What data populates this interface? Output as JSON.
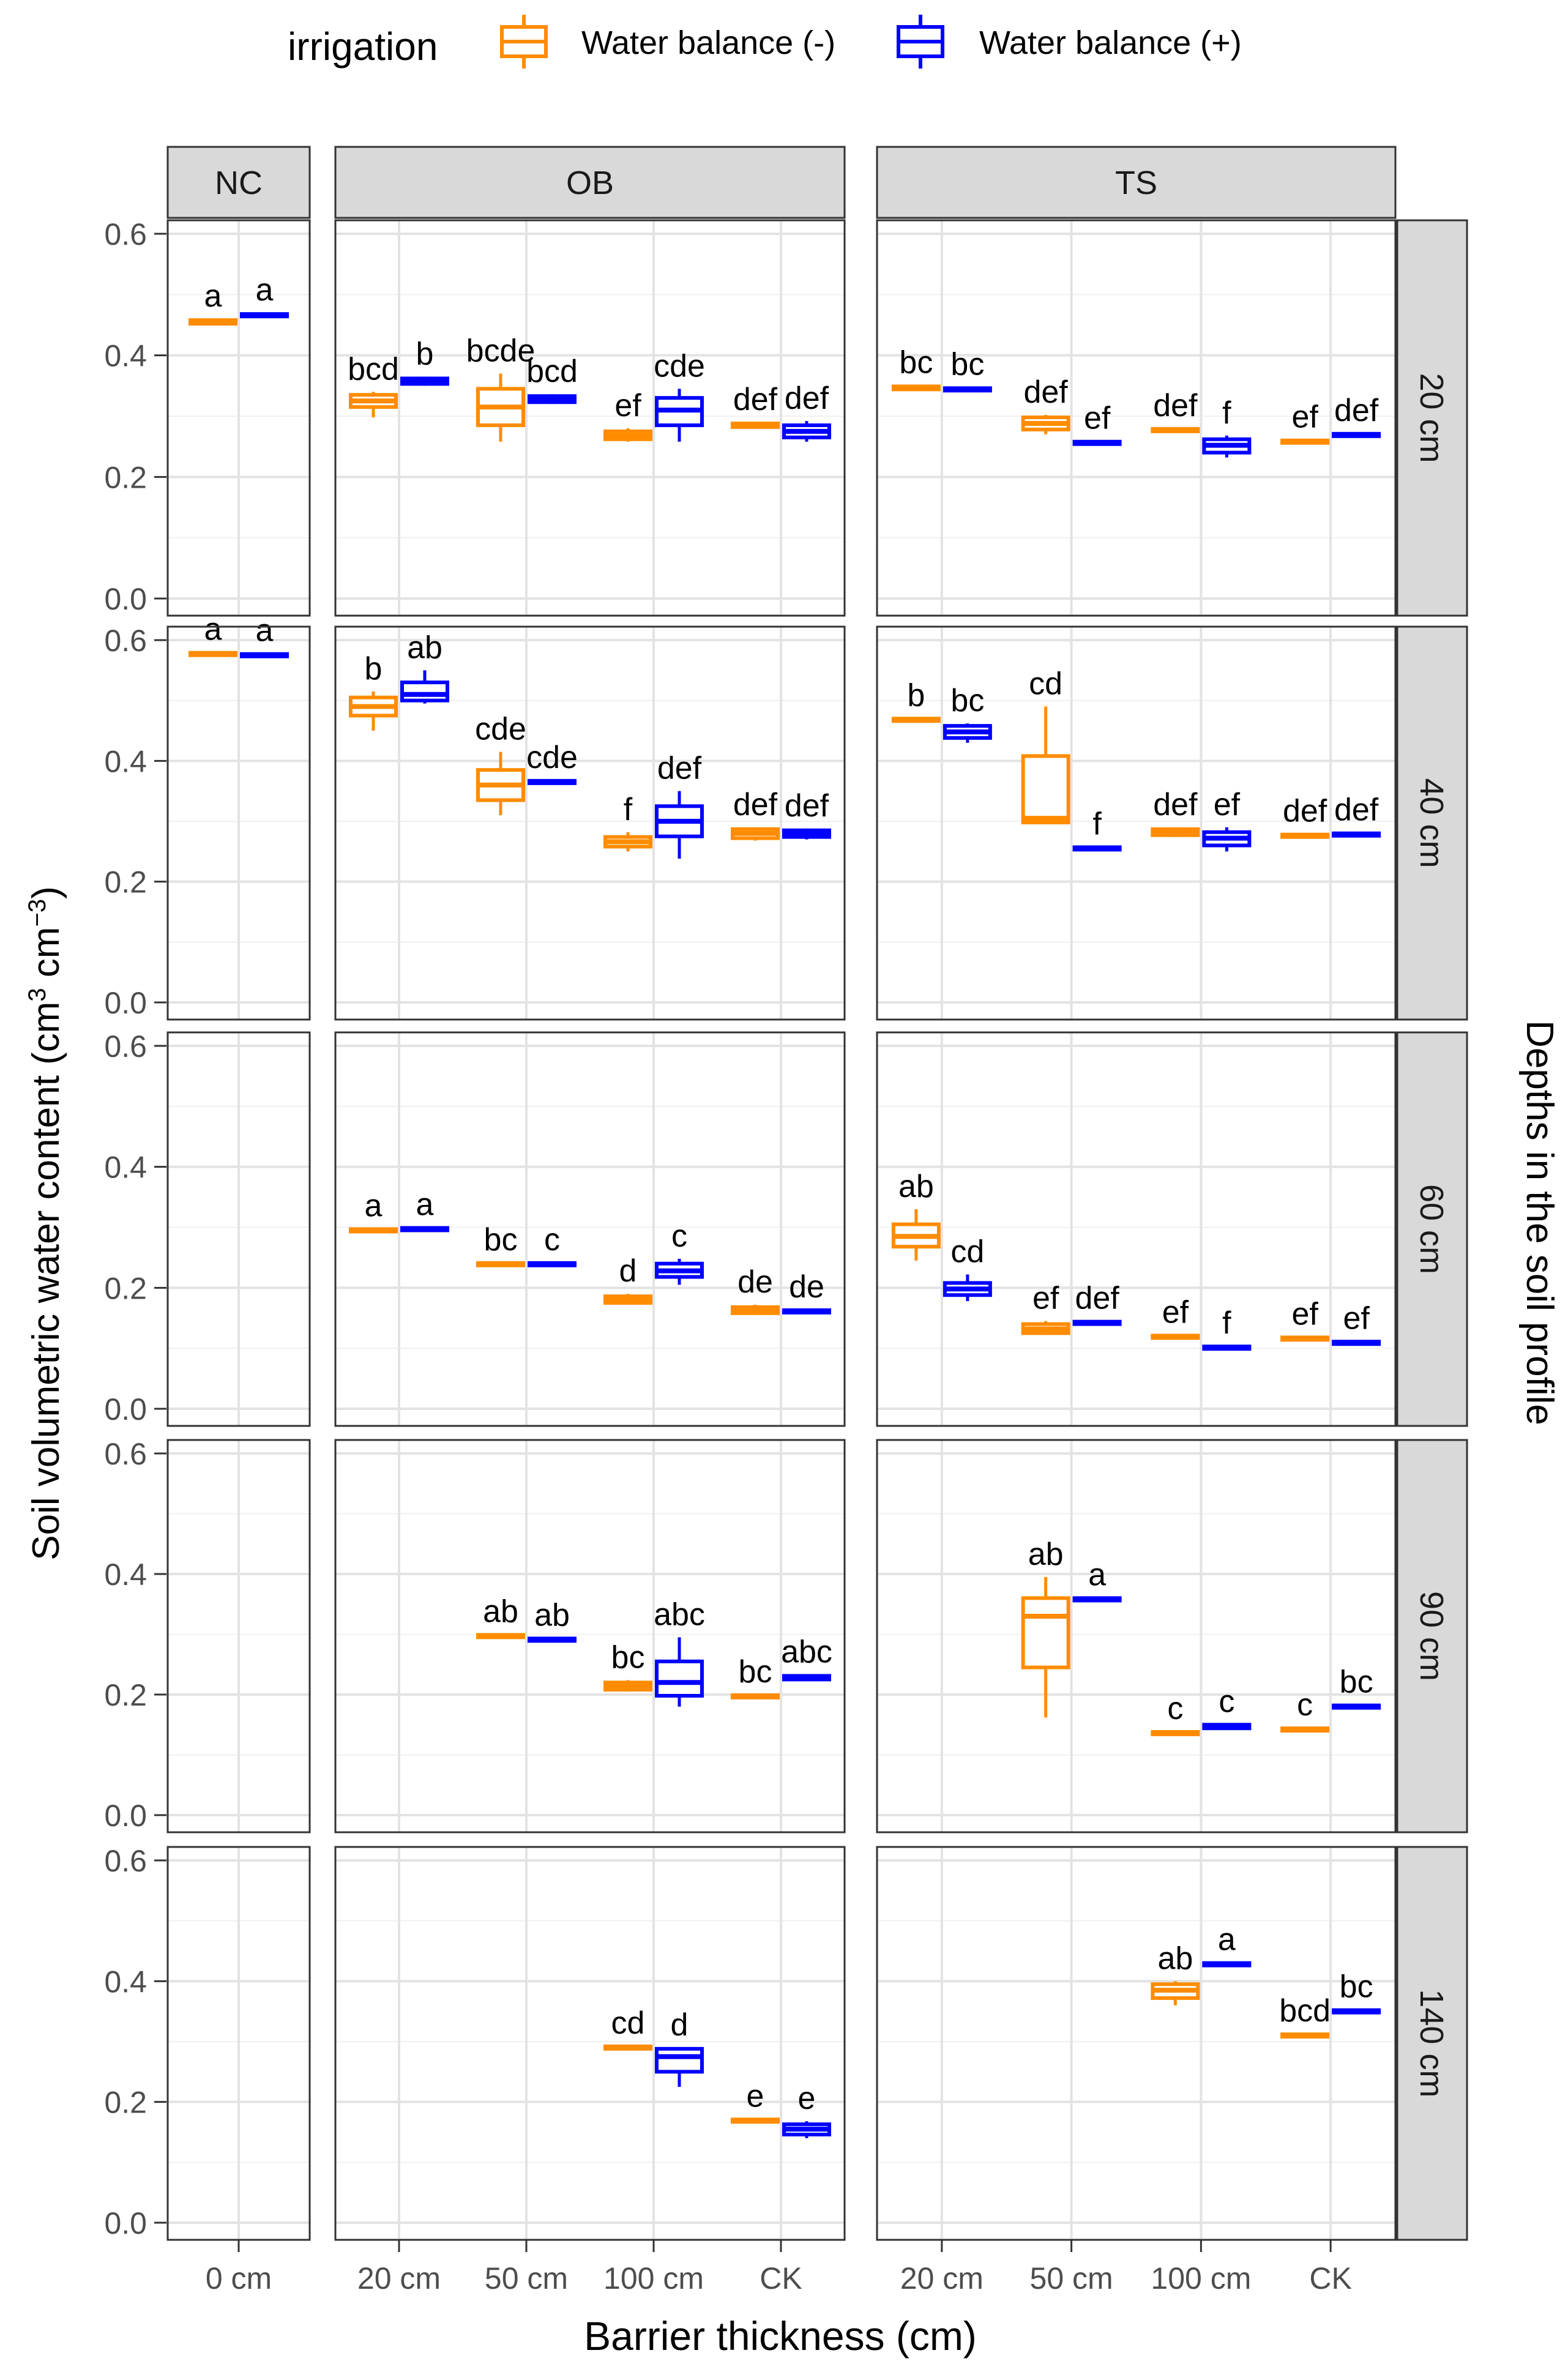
{
  "legend": {
    "title": "irrigation",
    "entries": [
      {
        "label": "Water balance (-)",
        "color": "#FF8C00"
      },
      {
        "label": "Water balance (+)",
        "color": "#0000FF"
      }
    ]
  },
  "chart_data": {
    "type": "box",
    "xlabel": "Barrier thickness (cm)",
    "ylabel": "Soil volumetric water content (cm",
    "ylabel_unit_parts": [
      "3",
      " cm",
      "−3",
      ")"
    ],
    "row_strip_title": "Depths in the soil profile",
    "ylim": [
      0,
      0.6
    ],
    "yticks": [
      "0.0",
      "0.2",
      "0.4",
      "0.6"
    ],
    "columns": [
      {
        "name": "NC",
        "categories": [
          "0 cm"
        ]
      },
      {
        "name": "OB",
        "categories": [
          "20 cm",
          "50 cm",
          "100 cm",
          "CK"
        ]
      },
      {
        "name": "TS",
        "categories": [
          "20 cm",
          "50 cm",
          "100 cm",
          "CK"
        ]
      }
    ],
    "rows": [
      "20 cm",
      "40 cm",
      "60 cm",
      "90 cm",
      "140 cm"
    ],
    "series_names": [
      "Water balance (-)",
      "Water balance (+)"
    ],
    "colors": [
      "#FF8C00",
      "#0000FF"
    ],
    "boxes": [
      {
        "row": 0,
        "col": 0,
        "cat": 0,
        "s": 0,
        "lo": 0.45,
        "q1": 0.452,
        "med": 0.455,
        "q3": 0.458,
        "hi": 0.46,
        "label": "a"
      },
      {
        "row": 0,
        "col": 0,
        "cat": 0,
        "s": 1,
        "lo": 0.462,
        "q1": 0.464,
        "med": 0.466,
        "q3": 0.468,
        "hi": 0.47,
        "label": "a"
      },
      {
        "row": 0,
        "col": 1,
        "cat": 0,
        "s": 0,
        "lo": 0.298,
        "q1": 0.315,
        "med": 0.325,
        "q3": 0.335,
        "hi": 0.34,
        "label": "bcd"
      },
      {
        "row": 0,
        "col": 1,
        "cat": 0,
        "s": 1,
        "lo": 0.35,
        "q1": 0.353,
        "med": 0.357,
        "q3": 0.362,
        "hi": 0.365,
        "label": "b"
      },
      {
        "row": 0,
        "col": 1,
        "cat": 1,
        "s": 0,
        "lo": 0.258,
        "q1": 0.285,
        "med": 0.315,
        "q3": 0.345,
        "hi": 0.37,
        "label": "bcde"
      },
      {
        "row": 0,
        "col": 1,
        "cat": 1,
        "s": 1,
        "lo": 0.32,
        "q1": 0.323,
        "med": 0.328,
        "q3": 0.333,
        "hi": 0.336,
        "label": "bcd"
      },
      {
        "row": 0,
        "col": 1,
        "cat": 2,
        "s": 0,
        "lo": 0.258,
        "q1": 0.262,
        "med": 0.268,
        "q3": 0.275,
        "hi": 0.28,
        "label": "ef"
      },
      {
        "row": 0,
        "col": 1,
        "cat": 2,
        "s": 1,
        "lo": 0.258,
        "q1": 0.285,
        "med": 0.31,
        "q3": 0.33,
        "hi": 0.345,
        "label": "cde"
      },
      {
        "row": 0,
        "col": 1,
        "cat": 3,
        "s": 0,
        "lo": 0.28,
        "q1": 0.282,
        "med": 0.285,
        "q3": 0.288,
        "hi": 0.29,
        "label": "def"
      },
      {
        "row": 0,
        "col": 1,
        "cat": 3,
        "s": 1,
        "lo": 0.258,
        "q1": 0.265,
        "med": 0.275,
        "q3": 0.285,
        "hi": 0.292,
        "label": "def"
      },
      {
        "row": 0,
        "col": 2,
        "cat": 0,
        "s": 0,
        "lo": 0.342,
        "q1": 0.344,
        "med": 0.346,
        "q3": 0.349,
        "hi": 0.351,
        "label": "bc"
      },
      {
        "row": 0,
        "col": 2,
        "cat": 0,
        "s": 1,
        "lo": 0.341,
        "q1": 0.342,
        "med": 0.344,
        "q3": 0.346,
        "hi": 0.348,
        "label": "bc"
      },
      {
        "row": 0,
        "col": 2,
        "cat": 1,
        "s": 0,
        "lo": 0.27,
        "q1": 0.278,
        "med": 0.288,
        "q3": 0.298,
        "hi": 0.302,
        "label": "def"
      },
      {
        "row": 0,
        "col": 2,
        "cat": 1,
        "s": 1,
        "lo": 0.253,
        "q1": 0.254,
        "med": 0.256,
        "q3": 0.258,
        "hi": 0.259,
        "label": "ef"
      },
      {
        "row": 0,
        "col": 2,
        "cat": 2,
        "s": 0,
        "lo": 0.274,
        "q1": 0.275,
        "med": 0.277,
        "q3": 0.279,
        "hi": 0.28,
        "label": "def"
      },
      {
        "row": 0,
        "col": 2,
        "cat": 2,
        "s": 1,
        "lo": 0.232,
        "q1": 0.24,
        "med": 0.252,
        "q3": 0.262,
        "hi": 0.268,
        "label": "f"
      },
      {
        "row": 0,
        "col": 2,
        "cat": 3,
        "s": 0,
        "lo": 0.255,
        "q1": 0.256,
        "med": 0.258,
        "q3": 0.26,
        "hi": 0.261,
        "label": "ef"
      },
      {
        "row": 0,
        "col": 2,
        "cat": 3,
        "s": 1,
        "lo": 0.266,
        "q1": 0.267,
        "med": 0.269,
        "q3": 0.271,
        "hi": 0.272,
        "label": "def"
      },
      {
        "row": 1,
        "col": 0,
        "cat": 0,
        "s": 0,
        "lo": 0.574,
        "q1": 0.575,
        "med": 0.577,
        "q3": 0.579,
        "hi": 0.58,
        "label": "a"
      },
      {
        "row": 1,
        "col": 0,
        "cat": 0,
        "s": 1,
        "lo": 0.572,
        "q1": 0.573,
        "med": 0.575,
        "q3": 0.577,
        "hi": 0.578,
        "label": "a"
      },
      {
        "row": 1,
        "col": 1,
        "cat": 0,
        "s": 0,
        "lo": 0.45,
        "q1": 0.475,
        "med": 0.49,
        "q3": 0.505,
        "hi": 0.515,
        "label": "b"
      },
      {
        "row": 1,
        "col": 1,
        "cat": 0,
        "s": 1,
        "lo": 0.495,
        "q1": 0.5,
        "med": 0.51,
        "q3": 0.53,
        "hi": 0.55,
        "label": "ab"
      },
      {
        "row": 1,
        "col": 1,
        "cat": 1,
        "s": 0,
        "lo": 0.31,
        "q1": 0.335,
        "med": 0.36,
        "q3": 0.385,
        "hi": 0.415,
        "label": "cde"
      },
      {
        "row": 1,
        "col": 1,
        "cat": 1,
        "s": 1,
        "lo": 0.362,
        "q1": 0.363,
        "med": 0.365,
        "q3": 0.367,
        "hi": 0.368,
        "label": "cde"
      },
      {
        "row": 1,
        "col": 1,
        "cat": 2,
        "s": 0,
        "lo": 0.25,
        "q1": 0.258,
        "med": 0.266,
        "q3": 0.274,
        "hi": 0.282,
        "label": "f"
      },
      {
        "row": 1,
        "col": 1,
        "cat": 2,
        "s": 1,
        "lo": 0.238,
        "q1": 0.275,
        "med": 0.3,
        "q3": 0.325,
        "hi": 0.35,
        "label": "def"
      },
      {
        "row": 1,
        "col": 1,
        "cat": 3,
        "s": 0,
        "lo": 0.268,
        "q1": 0.272,
        "med": 0.28,
        "q3": 0.287,
        "hi": 0.29,
        "label": "def"
      },
      {
        "row": 1,
        "col": 1,
        "cat": 3,
        "s": 1,
        "lo": 0.27,
        "q1": 0.274,
        "med": 0.279,
        "q3": 0.285,
        "hi": 0.288,
        "label": "def"
      },
      {
        "row": 1,
        "col": 2,
        "cat": 0,
        "s": 0,
        "lo": 0.465,
        "q1": 0.466,
        "med": 0.468,
        "q3": 0.47,
        "hi": 0.471,
        "label": "b"
      },
      {
        "row": 1,
        "col": 2,
        "cat": 0,
        "s": 1,
        "lo": 0.43,
        "q1": 0.438,
        "med": 0.448,
        "q3": 0.458,
        "hi": 0.462,
        "label": "bc"
      },
      {
        "row": 1,
        "col": 2,
        "cat": 1,
        "s": 0,
        "lo": 0.295,
        "q1": 0.298,
        "med": 0.305,
        "q3": 0.408,
        "hi": 0.49,
        "label": "cd"
      },
      {
        "row": 1,
        "col": 2,
        "cat": 1,
        "s": 1,
        "lo": 0.252,
        "q1": 0.253,
        "med": 0.255,
        "q3": 0.257,
        "hi": 0.258,
        "label": "f"
      },
      {
        "row": 1,
        "col": 2,
        "cat": 2,
        "s": 0,
        "lo": 0.274,
        "q1": 0.277,
        "med": 0.282,
        "q3": 0.287,
        "hi": 0.29,
        "label": "def"
      },
      {
        "row": 1,
        "col": 2,
        "cat": 2,
        "s": 1,
        "lo": 0.25,
        "q1": 0.26,
        "med": 0.272,
        "q3": 0.282,
        "hi": 0.29,
        "label": "ef"
      },
      {
        "row": 1,
        "col": 2,
        "cat": 3,
        "s": 0,
        "lo": 0.273,
        "q1": 0.274,
        "med": 0.276,
        "q3": 0.278,
        "hi": 0.279,
        "label": "def"
      },
      {
        "row": 1,
        "col": 2,
        "cat": 3,
        "s": 1,
        "lo": 0.275,
        "q1": 0.276,
        "med": 0.278,
        "q3": 0.28,
        "hi": 0.281,
        "label": "def"
      },
      {
        "row": 2,
        "col": 1,
        "cat": 0,
        "s": 0,
        "lo": 0.292,
        "q1": 0.293,
        "med": 0.295,
        "q3": 0.297,
        "hi": 0.298,
        "label": "a"
      },
      {
        "row": 2,
        "col": 1,
        "cat": 0,
        "s": 1,
        "lo": 0.294,
        "q1": 0.295,
        "med": 0.297,
        "q3": 0.299,
        "hi": 0.3,
        "label": "a"
      },
      {
        "row": 2,
        "col": 1,
        "cat": 1,
        "s": 0,
        "lo": 0.236,
        "q1": 0.237,
        "med": 0.239,
        "q3": 0.241,
        "hi": 0.242,
        "label": "bc"
      },
      {
        "row": 2,
        "col": 1,
        "cat": 1,
        "s": 1,
        "lo": 0.236,
        "q1": 0.237,
        "med": 0.239,
        "q3": 0.241,
        "hi": 0.242,
        "label": "c"
      },
      {
        "row": 2,
        "col": 1,
        "cat": 2,
        "s": 0,
        "lo": 0.172,
        "q1": 0.175,
        "med": 0.18,
        "q3": 0.186,
        "hi": 0.19,
        "label": "d"
      },
      {
        "row": 2,
        "col": 1,
        "cat": 2,
        "s": 1,
        "lo": 0.205,
        "q1": 0.218,
        "med": 0.228,
        "q3": 0.24,
        "hi": 0.248,
        "label": "c"
      },
      {
        "row": 2,
        "col": 1,
        "cat": 3,
        "s": 0,
        "lo": 0.155,
        "q1": 0.158,
        "med": 0.163,
        "q3": 0.168,
        "hi": 0.172,
        "label": "de"
      },
      {
        "row": 2,
        "col": 1,
        "cat": 3,
        "s": 1,
        "lo": 0.158,
        "q1": 0.159,
        "med": 0.161,
        "q3": 0.163,
        "hi": 0.164,
        "label": "de"
      },
      {
        "row": 2,
        "col": 2,
        "cat": 0,
        "s": 0,
        "lo": 0.245,
        "q1": 0.268,
        "med": 0.285,
        "q3": 0.305,
        "hi": 0.33,
        "label": "ab"
      },
      {
        "row": 2,
        "col": 2,
        "cat": 0,
        "s": 1,
        "lo": 0.178,
        "q1": 0.188,
        "med": 0.198,
        "q3": 0.208,
        "hi": 0.222,
        "label": "cd"
      },
      {
        "row": 2,
        "col": 2,
        "cat": 1,
        "s": 0,
        "lo": 0.122,
        "q1": 0.125,
        "med": 0.132,
        "q3": 0.14,
        "hi": 0.145,
        "label": "ef"
      },
      {
        "row": 2,
        "col": 2,
        "cat": 1,
        "s": 1,
        "lo": 0.139,
        "q1": 0.14,
        "med": 0.142,
        "q3": 0.144,
        "hi": 0.145,
        "label": "def"
      },
      {
        "row": 2,
        "col": 2,
        "cat": 2,
        "s": 0,
        "lo": 0.116,
        "q1": 0.117,
        "med": 0.119,
        "q3": 0.121,
        "hi": 0.122,
        "label": "ef"
      },
      {
        "row": 2,
        "col": 2,
        "cat": 2,
        "s": 1,
        "lo": 0.098,
        "q1": 0.099,
        "med": 0.101,
        "q3": 0.103,
        "hi": 0.104,
        "label": "f"
      },
      {
        "row": 2,
        "col": 2,
        "cat": 3,
        "s": 0,
        "lo": 0.113,
        "q1": 0.114,
        "med": 0.116,
        "q3": 0.118,
        "hi": 0.119,
        "label": "ef"
      },
      {
        "row": 2,
        "col": 2,
        "cat": 3,
        "s": 1,
        "lo": 0.106,
        "q1": 0.107,
        "med": 0.109,
        "q3": 0.111,
        "hi": 0.112,
        "label": "ef"
      },
      {
        "row": 3,
        "col": 1,
        "cat": 1,
        "s": 0,
        "lo": 0.294,
        "q1": 0.295,
        "med": 0.297,
        "q3": 0.299,
        "hi": 0.3,
        "label": "ab"
      },
      {
        "row": 3,
        "col": 1,
        "cat": 1,
        "s": 1,
        "lo": 0.288,
        "q1": 0.289,
        "med": 0.291,
        "q3": 0.293,
        "hi": 0.294,
        "label": "ab"
      },
      {
        "row": 3,
        "col": 1,
        "cat": 2,
        "s": 0,
        "lo": 0.205,
        "q1": 0.208,
        "med": 0.214,
        "q3": 0.22,
        "hi": 0.224,
        "label": "bc"
      },
      {
        "row": 3,
        "col": 1,
        "cat": 2,
        "s": 1,
        "lo": 0.18,
        "q1": 0.198,
        "med": 0.22,
        "q3": 0.255,
        "hi": 0.295,
        "label": "abc"
      },
      {
        "row": 3,
        "col": 1,
        "cat": 3,
        "s": 0,
        "lo": 0.194,
        "q1": 0.195,
        "med": 0.197,
        "q3": 0.199,
        "hi": 0.2,
        "label": "bc"
      },
      {
        "row": 3,
        "col": 1,
        "cat": 3,
        "s": 1,
        "lo": 0.224,
        "q1": 0.225,
        "med": 0.228,
        "q3": 0.231,
        "hi": 0.233,
        "label": "abc"
      },
      {
        "row": 3,
        "col": 2,
        "cat": 1,
        "s": 0,
        "lo": 0.162,
        "q1": 0.245,
        "med": 0.33,
        "q3": 0.36,
        "hi": 0.395,
        "label": "ab"
      },
      {
        "row": 3,
        "col": 2,
        "cat": 1,
        "s": 1,
        "lo": 0.355,
        "q1": 0.356,
        "med": 0.358,
        "q3": 0.36,
        "hi": 0.361,
        "label": "a"
      },
      {
        "row": 3,
        "col": 2,
        "cat": 2,
        "s": 0,
        "lo": 0.133,
        "q1": 0.134,
        "med": 0.136,
        "q3": 0.138,
        "hi": 0.139,
        "label": "c"
      },
      {
        "row": 3,
        "col": 2,
        "cat": 2,
        "s": 1,
        "lo": 0.143,
        "q1": 0.144,
        "med": 0.147,
        "q3": 0.15,
        "hi": 0.151,
        "label": "c"
      },
      {
        "row": 3,
        "col": 2,
        "cat": 3,
        "s": 0,
        "lo": 0.139,
        "q1": 0.14,
        "med": 0.142,
        "q3": 0.144,
        "hi": 0.145,
        "label": "c"
      },
      {
        "row": 3,
        "col": 2,
        "cat": 3,
        "s": 1,
        "lo": 0.177,
        "q1": 0.178,
        "med": 0.18,
        "q3": 0.182,
        "hi": 0.183,
        "label": "bc"
      },
      {
        "row": 4,
        "col": 1,
        "cat": 2,
        "s": 0,
        "lo": 0.287,
        "q1": 0.288,
        "med": 0.29,
        "q3": 0.292,
        "hi": 0.293,
        "label": "cd"
      },
      {
        "row": 4,
        "col": 1,
        "cat": 2,
        "s": 1,
        "lo": 0.225,
        "q1": 0.25,
        "med": 0.275,
        "q3": 0.288,
        "hi": 0.29,
        "label": "d"
      },
      {
        "row": 4,
        "col": 1,
        "cat": 3,
        "s": 0,
        "lo": 0.166,
        "q1": 0.167,
        "med": 0.169,
        "q3": 0.171,
        "hi": 0.172,
        "label": "e"
      },
      {
        "row": 4,
        "col": 1,
        "cat": 3,
        "s": 1,
        "lo": 0.14,
        "q1": 0.146,
        "med": 0.155,
        "q3": 0.163,
        "hi": 0.168,
        "label": "e"
      },
      {
        "row": 4,
        "col": 2,
        "cat": 2,
        "s": 0,
        "lo": 0.36,
        "q1": 0.372,
        "med": 0.385,
        "q3": 0.395,
        "hi": 0.4,
        "label": "ab"
      },
      {
        "row": 4,
        "col": 2,
        "cat": 2,
        "s": 1,
        "lo": 0.425,
        "q1": 0.426,
        "med": 0.428,
        "q3": 0.43,
        "hi": 0.431,
        "label": "a"
      },
      {
        "row": 4,
        "col": 2,
        "cat": 3,
        "s": 0,
        "lo": 0.307,
        "q1": 0.308,
        "med": 0.31,
        "q3": 0.312,
        "hi": 0.313,
        "label": "bcd"
      },
      {
        "row": 4,
        "col": 2,
        "cat": 3,
        "s": 1,
        "lo": 0.347,
        "q1": 0.348,
        "med": 0.35,
        "q3": 0.352,
        "hi": 0.353,
        "label": "bc"
      }
    ]
  }
}
